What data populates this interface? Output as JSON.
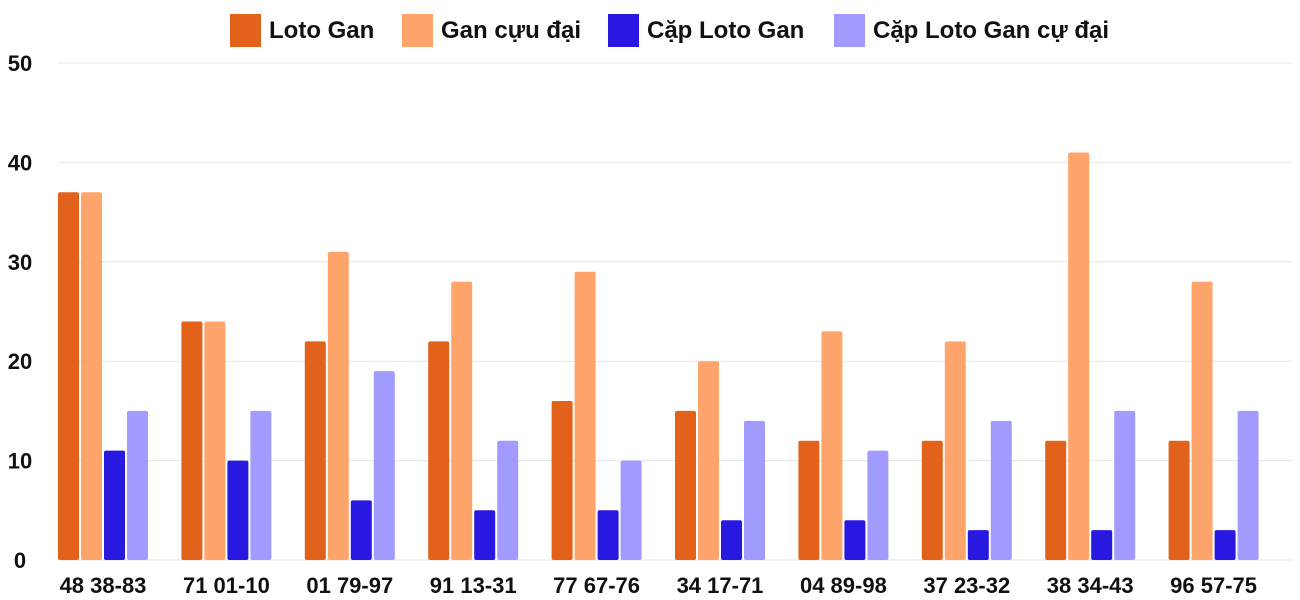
{
  "chart_data": {
    "type": "bar",
    "title": "",
    "xlabel": "",
    "ylabel": "",
    "ylim": [
      0,
      50
    ],
    "yticks": [
      0,
      10,
      20,
      30,
      40,
      50
    ],
    "grid": true,
    "legend_position": "top-center",
    "categories": [
      "48 38-83",
      "71 01-10",
      "01 79-97",
      "91 13-31",
      "77 67-76",
      "34 17-71",
      "04 89-98",
      "37 23-32",
      "38 34-43",
      "96 57-75"
    ],
    "series": [
      {
        "name": "Loto Gan",
        "color": "#e2621b",
        "values": [
          37,
          24,
          22,
          22,
          16,
          15,
          12,
          12,
          12,
          12
        ]
      },
      {
        "name": "Gan cựu đại",
        "color": "#ffa56c",
        "values": [
          37,
          24,
          31,
          28,
          29,
          20,
          23,
          22,
          41,
          28
        ]
      },
      {
        "name": "Cặp Loto Gan",
        "color": "#2818e0",
        "values": [
          11,
          10,
          6,
          5,
          5,
          4,
          4,
          3,
          3,
          3
        ]
      },
      {
        "name": "Cặp Loto Gan cự đại",
        "color": "#a29bff",
        "values": [
          15,
          15,
          19,
          12,
          10,
          14,
          11,
          14,
          15,
          15
        ]
      }
    ]
  }
}
